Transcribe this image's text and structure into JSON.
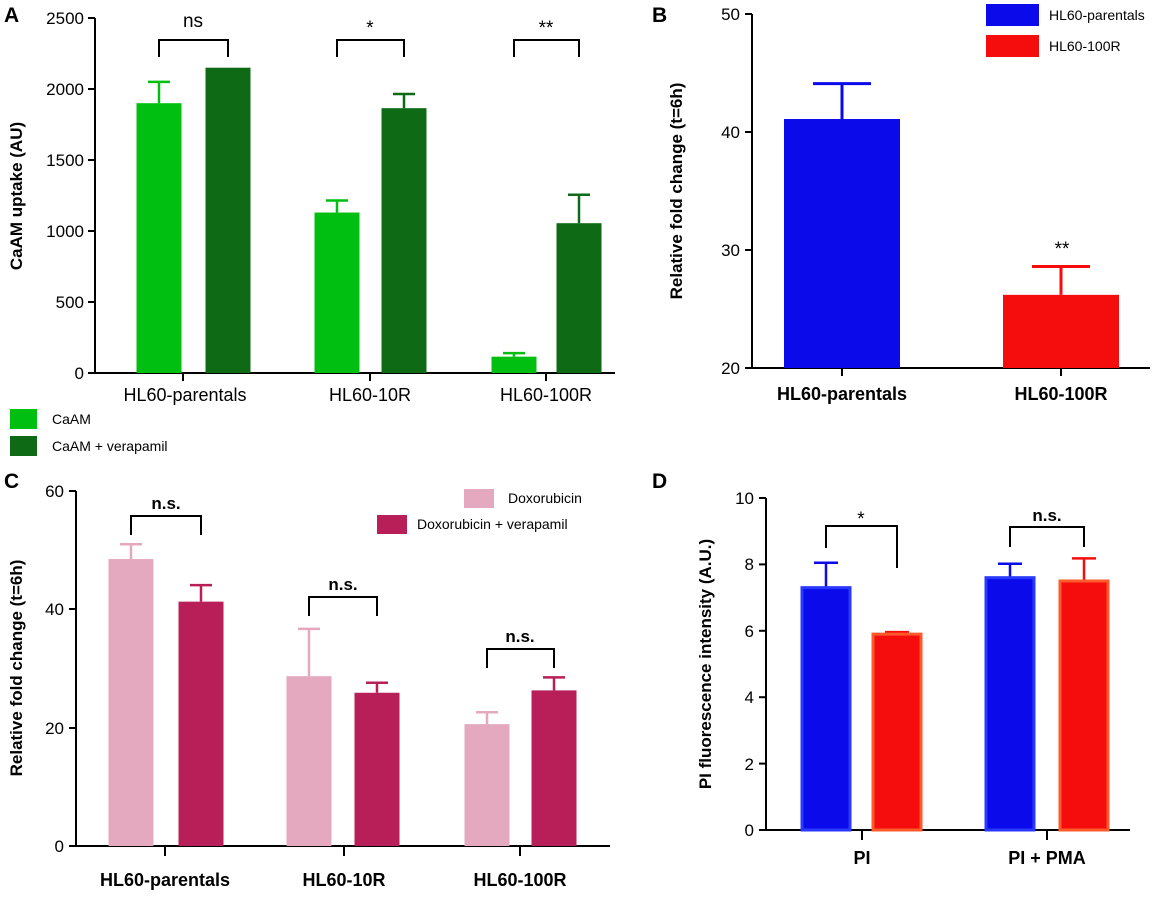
{
  "panels": {
    "A": {
      "label": "A"
    },
    "B": {
      "label": "B"
    },
    "C": {
      "label": "C"
    },
    "D": {
      "label": "D"
    }
  },
  "colors": {
    "caam": "#00bf10",
    "caam_verapamil": "#0e6a14",
    "parental": "#0a0aeb",
    "r100": "#f50c0c",
    "doxo": "#e4a9bf",
    "doxo_verapamil": "#b81f58"
  },
  "chart_data": [
    {
      "id": "A",
      "type": "bar",
      "title": "",
      "xlabel": "",
      "ylabel": "CaAM uptake (AU)",
      "ylim": [
        0,
        2500
      ],
      "yticks": [
        "0",
        "500",
        "1000",
        "1500",
        "2000",
        "2500"
      ],
      "categories": [
        "HL60-parentals",
        "HL60-10R",
        "HL60-100R"
      ],
      "series": [
        {
          "name": "CaAM",
          "values": [
            1900,
            1130,
            115
          ],
          "errors": [
            150,
            85,
            25
          ]
        },
        {
          "name": "CaAM + verapamil",
          "values": [
            2150,
            1865,
            1055
          ],
          "errors": [
            0,
            100,
            200
          ]
        }
      ],
      "significance": [
        "ns",
        "*",
        "**"
      ],
      "legend": [
        "CaAM",
        "CaAM + verapamil"
      ]
    },
    {
      "id": "B",
      "type": "bar",
      "title": "",
      "xlabel": "",
      "ylabel": "Relative fold change (t=6h)",
      "ylim": [
        20,
        50
      ],
      "yticks": [
        "20",
        "30",
        "40",
        "50"
      ],
      "categories": [
        "HL60-parentals",
        "HL60-100R"
      ],
      "values": [
        41.1,
        26.2
      ],
      "errors": [
        3.0,
        2.4
      ],
      "significance": [
        "",
        "**"
      ],
      "legend": [
        "HL60-parentals",
        "HL60-100R"
      ]
    },
    {
      "id": "C",
      "type": "bar",
      "title": "",
      "xlabel": "",
      "ylabel": "Relative fold change (t=6h)",
      "ylim": [
        0,
        60
      ],
      "yticks": [
        "0",
        "20",
        "40",
        "60"
      ],
      "categories": [
        "HL60-parentals",
        "HL60-10R",
        "HL60-100R"
      ],
      "series": [
        {
          "name": "Doxorubicin",
          "values": [
            48.5,
            28.7,
            20.6
          ],
          "errors": [
            2.5,
            8.0,
            2.0
          ]
        },
        {
          "name": "Doxorubicin + verapamil",
          "values": [
            41.3,
            25.9,
            26.3
          ],
          "errors": [
            2.8,
            1.7,
            2.2
          ]
        }
      ],
      "significance": [
        "n.s.",
        "n.s.",
        "n.s."
      ],
      "legend": [
        "Doxorubicin",
        "Doxorubicin + verapamil"
      ]
    },
    {
      "id": "D",
      "type": "bar",
      "title": "",
      "xlabel": "",
      "ylabel": "PI fluorescence intensity (A.U.)",
      "ylim": [
        0,
        10
      ],
      "yticks": [
        "0",
        "2",
        "4",
        "6",
        "8",
        "10"
      ],
      "categories": [
        "PI",
        "PI + PMA"
      ],
      "series": [
        {
          "name": "HL60-parentals",
          "values": [
            7.3,
            7.6
          ],
          "errors": [
            0.75,
            0.42
          ]
        },
        {
          "name": "HL60-100R",
          "values": [
            5.9,
            7.5
          ],
          "errors": [
            0.06,
            0.68
          ]
        }
      ],
      "significance": [
        "*",
        "n.s."
      ]
    }
  ]
}
